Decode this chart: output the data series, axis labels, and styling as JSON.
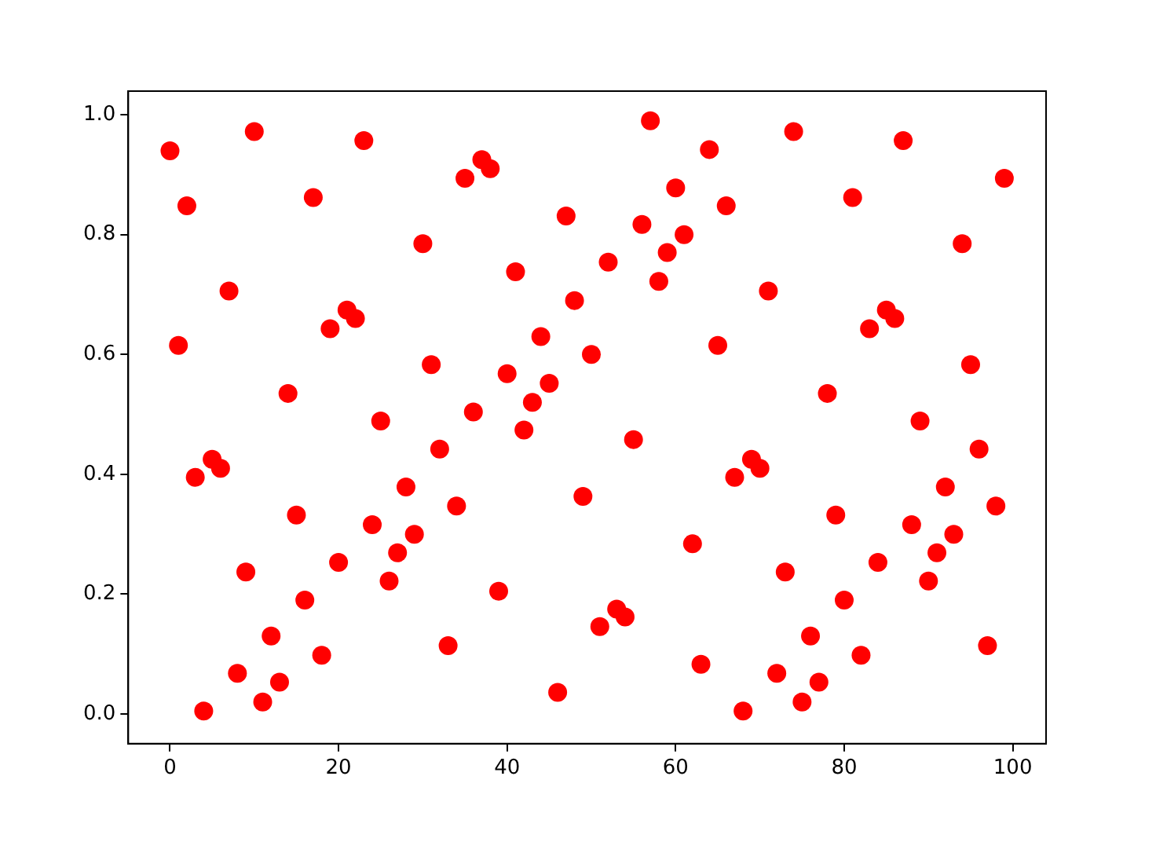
{
  "chart_data": {
    "type": "scatter",
    "marker": "circle",
    "grid": false,
    "legend": false,
    "xlim": [
      -4.95,
      103.95
    ],
    "xticks": [
      0,
      20,
      40,
      60,
      80,
      100
    ],
    "ylim": [
      -0.0495,
      1.0395
    ],
    "yticks": [
      {
        "value": 0,
        "label": "0.0"
      },
      {
        "value": 0.2,
        "label": "0.2"
      },
      {
        "value": 0.4,
        "label": "0.4"
      },
      {
        "value": 0.6,
        "label": "0.6"
      },
      {
        "value": 0.8,
        "label": "0.8"
      },
      {
        "value": 1,
        "label": "1.0"
      }
    ],
    "series": [
      {
        "color": "#ff0000",
        "x": [
          0,
          1,
          2,
          3,
          4,
          5,
          6,
          7,
          8,
          9,
          10,
          11,
          12,
          13,
          14,
          15,
          16,
          17,
          18,
          19,
          20,
          21,
          22,
          23,
          24,
          25,
          26,
          27,
          28,
          29,
          30,
          31,
          32,
          33,
          34,
          35,
          36,
          37,
          38,
          39,
          40,
          41,
          42,
          43,
          44,
          45,
          46,
          47,
          48,
          49,
          50,
          51,
          52,
          53,
          54,
          55,
          56,
          57,
          58,
          59,
          60,
          61,
          62,
          63,
          64,
          65,
          66,
          67,
          68,
          69,
          70,
          71,
          72,
          73,
          74,
          75,
          76,
          77,
          78,
          79,
          80,
          81,
          82,
          83,
          84,
          85,
          86,
          87,
          88,
          89,
          90,
          91,
          92,
          93,
          94,
          95,
          96,
          97,
          98,
          99
        ],
        "values": [
          0.94,
          0.615,
          0.848,
          0.395,
          0.005,
          0.425,
          0.41,
          0.706,
          0.068,
          0.237,
          0.972,
          0.02,
          0.13,
          0.053,
          0.535,
          0.332,
          0.19,
          0.862,
          0.098,
          0.643,
          0.253,
          0.674,
          0.66,
          0.957,
          0.316,
          0.489,
          0.222,
          0.269,
          0.379,
          0.3,
          0.785,
          0.583,
          0.442,
          0.114,
          0.347,
          0.894,
          0.504,
          0.925,
          0.91,
          0.205,
          0.568,
          0.738,
          0.474,
          0.52,
          0.63,
          0.552,
          0.036,
          0.831,
          0.69,
          0.363,
          0.6,
          0.146,
          0.754,
          0.175,
          0.162,
          0.458,
          0.817,
          0.99,
          0.722,
          0.77,
          0.878,
          0.8,
          0.284,
          0.083,
          0.942,
          0.615,
          0.848,
          0.395,
          0.005,
          0.425,
          0.41,
          0.706,
          0.068,
          0.237,
          0.972,
          0.02,
          0.13,
          0.053,
          0.535,
          0.332,
          0.19,
          0.862,
          0.098,
          0.643,
          0.253,
          0.674,
          0.66,
          0.957,
          0.316,
          0.489,
          0.222,
          0.269,
          0.379,
          0.3,
          0.785,
          0.583,
          0.442,
          0.114,
          0.347,
          0.894
        ]
      }
    ]
  }
}
